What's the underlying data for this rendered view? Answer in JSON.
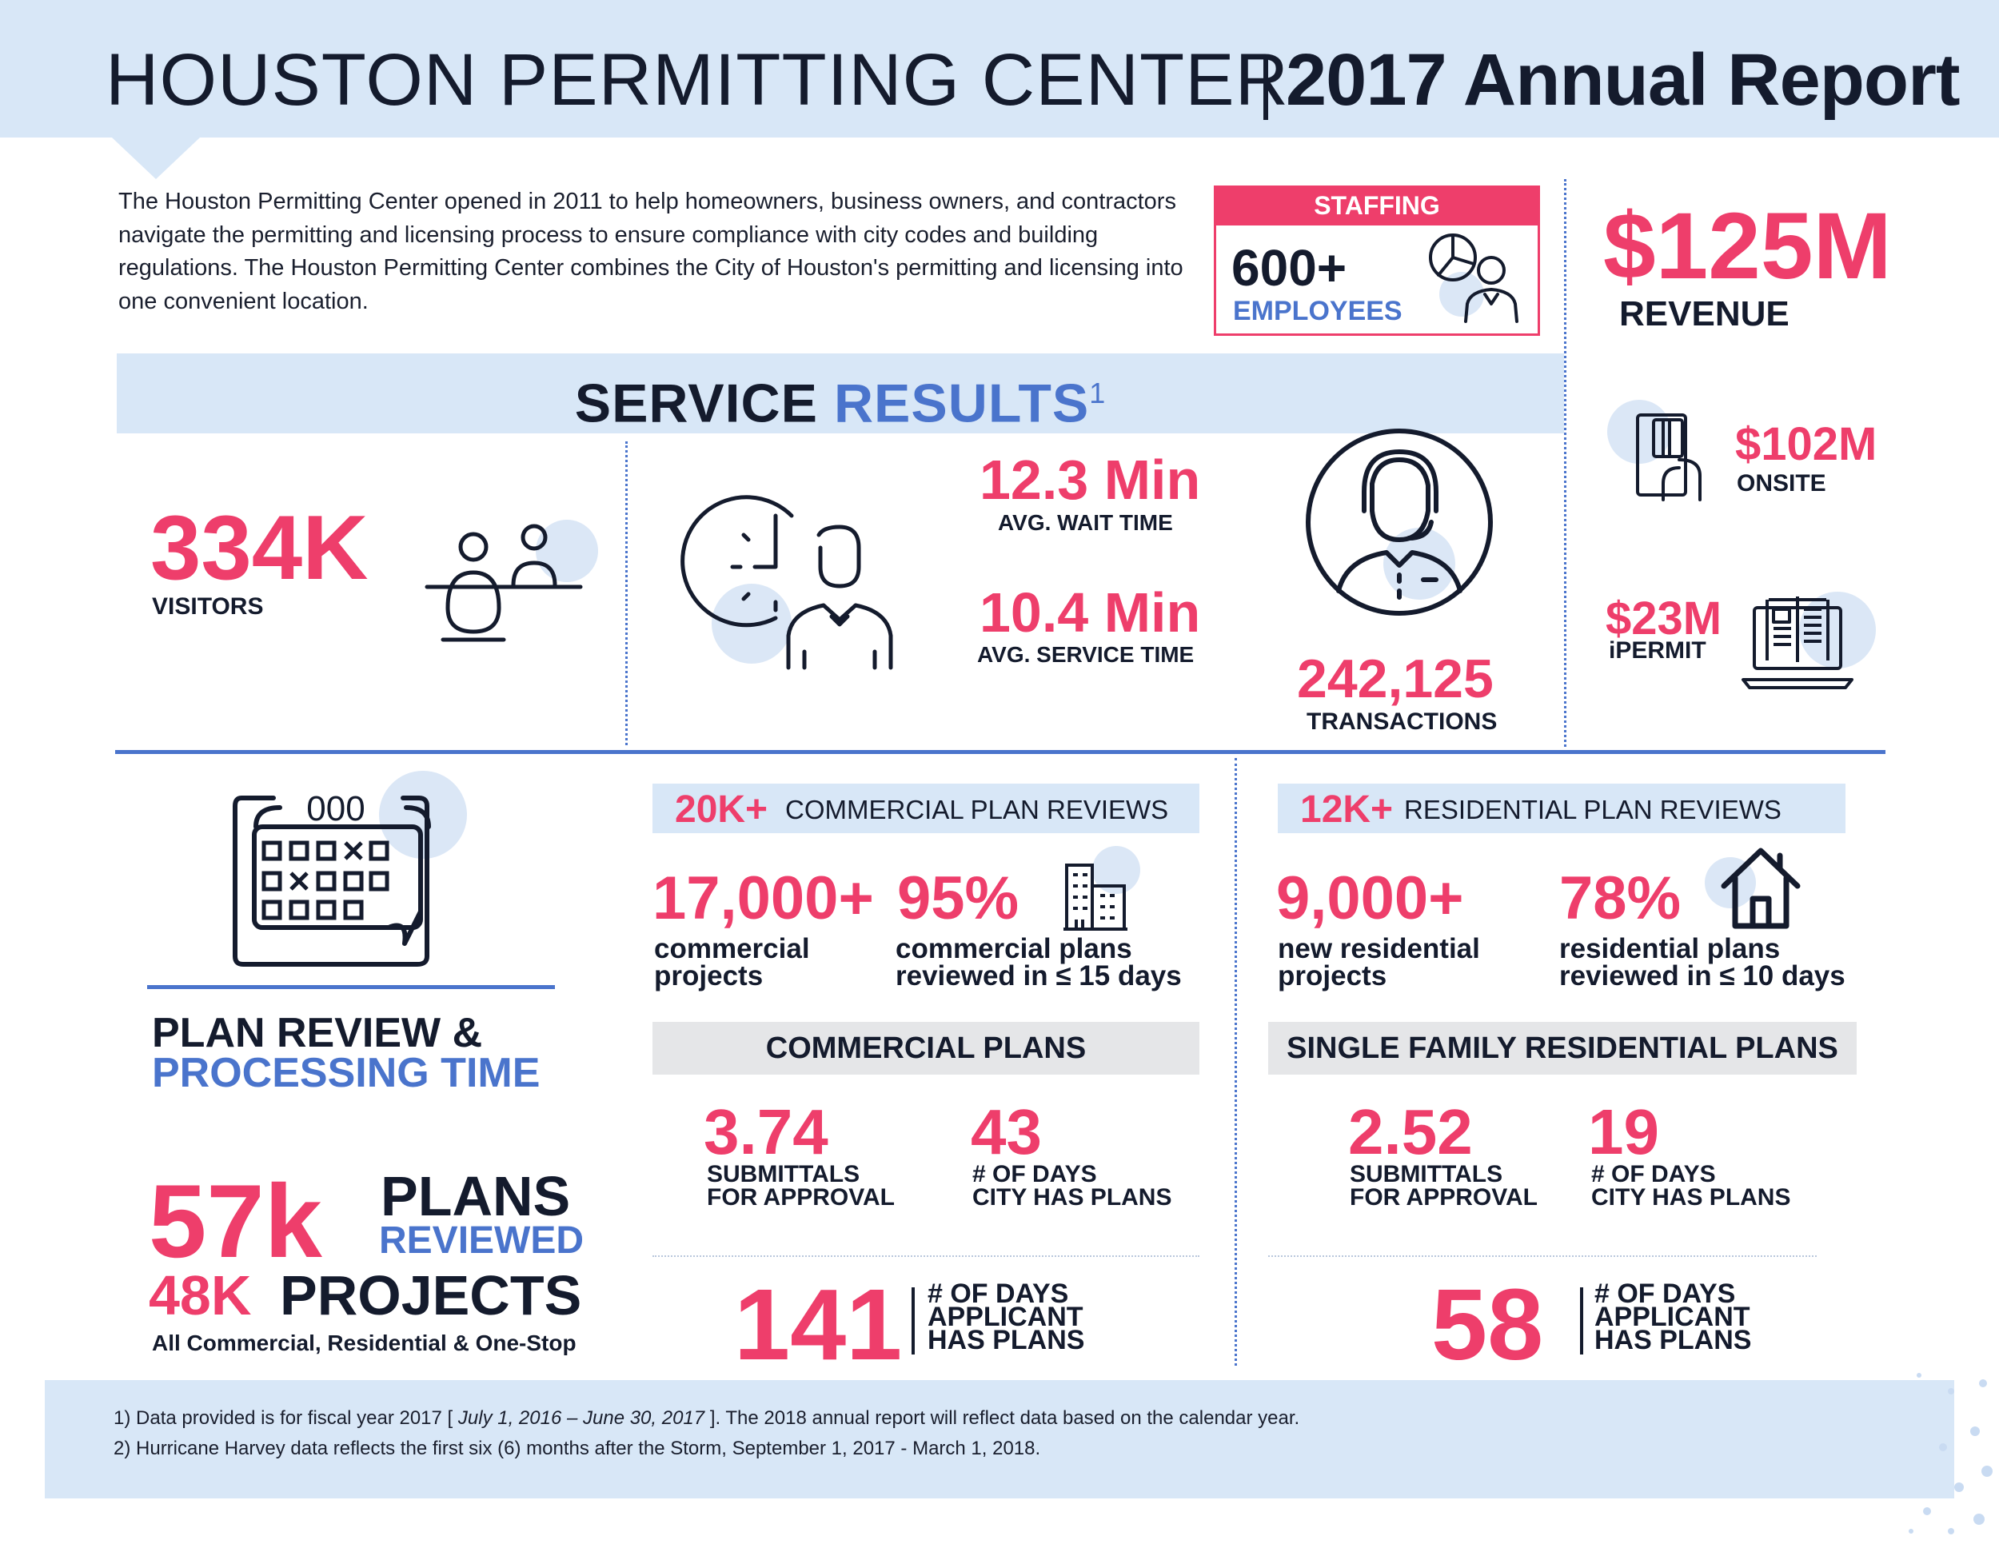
{
  "header": {
    "title_light": "HOUSTON PERMITTING CENTER",
    "title_bold": "2017 Annual Report"
  },
  "intro": {
    "text": "The Houston Permitting Center opened in 2011 to help homeowners, business owners, and contractors navigate the permitting and licensing process to ensure compliance with city codes and building regulations. The Houston Permitting Center combines the City of Houston's permitting and licensing into one convenient location."
  },
  "staffing": {
    "heading": "STAFFING",
    "value": "600+",
    "label": "EMPLOYEES"
  },
  "revenue": {
    "total": "$125M",
    "total_label": "REVENUE",
    "onsite_value": "$102M",
    "onsite_label": "ONSITE",
    "ipermit_value": "$23M",
    "ipermit_label": "iPERMIT"
  },
  "service_results": {
    "title_dark": "SERVICE",
    "title_blue": "RESULTS",
    "footnote_mark": "1",
    "visitors_value": "334K",
    "visitors_label": "VISITORS",
    "wait_value": "12.3 Min",
    "wait_label": "AVG. WAIT TIME",
    "service_value": "10.4 Min",
    "service_label": "AVG. SERVICE TIME",
    "transactions_value": "242,125",
    "transactions_label": "TRANSACTIONS"
  },
  "plan_review": {
    "title_dark": "PLAN REVIEW &",
    "title_blue": "PROCESSING TIME",
    "plans_value": "57k",
    "plans_word": "PLANS",
    "plans_reviewed": "REVIEWED",
    "projects_value": "48K",
    "projects_word": "PROJECTS",
    "projects_note": "All Commercial, Residential & One-Stop",
    "calendar_digits": "000"
  },
  "commercial": {
    "band_value": "20K+",
    "band_label": "COMMERCIAL PLAN REVIEWS",
    "projects_value": "17,000+",
    "projects_line1": "commercial",
    "projects_line2": "projects",
    "pct_value": "95%",
    "pct_line1": "commercial plans",
    "pct_line2": "reviewed in ≤ 15 days",
    "plans_band": "COMMERCIAL PLANS",
    "submittals_value": "3.74",
    "submittals_line1": "SUBMITTALS",
    "submittals_line2": "FOR APPROVAL",
    "city_value": "43",
    "city_line1": "# OF DAYS",
    "city_line2": "CITY HAS PLANS",
    "applicant_value": "141",
    "applicant_line1": "# OF DAYS",
    "applicant_line2": "APPLICANT",
    "applicant_line3": "HAS PLANS"
  },
  "residential": {
    "band_value": "12K+",
    "band_label": "RESIDENTIAL PLAN REVIEWS",
    "projects_value": "9,000+",
    "projects_line1": "new residential",
    "projects_line2": "projects",
    "pct_value": "78%",
    "pct_line1": "residential plans",
    "pct_line2": "reviewed in ≤ 10 days",
    "plans_band": "SINGLE FAMILY RESIDENTIAL PLANS",
    "submittals_value": "2.52",
    "submittals_line1": "SUBMITTALS",
    "submittals_line2": "FOR APPROVAL",
    "city_value": "19",
    "city_line1": "# OF DAYS",
    "city_line2": "CITY HAS PLANS",
    "applicant_value": "58",
    "applicant_line1": "# OF DAYS",
    "applicant_line2": "APPLICANT",
    "applicant_line3": "HAS PLANS"
  },
  "footer": {
    "note1_a": "1) Data provided is for fiscal year 2017 [",
    "note1_dates": "July 1, 2016 – June 30, 2017",
    "note1_b": "]. The 2018 annual report will reflect data based on the calendar year.",
    "note2": "2) Hurricane Harvey data reflects the first six (6) months after the Storm, September 1, 2017 - March 1, 2018."
  },
  "colors": {
    "accent_pink": "#ee3e6b",
    "accent_blue": "#4a74cc",
    "band_blue": "#d8e7f7",
    "navy": "#141b2d"
  },
  "icons": [
    "people-at-counter-icon",
    "clock-employee-icon",
    "headset-agent-icon",
    "card-payment-icon",
    "laptop-document-icon",
    "pie-chart-person-icon",
    "calendar-icon",
    "building-icon",
    "house-icon"
  ]
}
